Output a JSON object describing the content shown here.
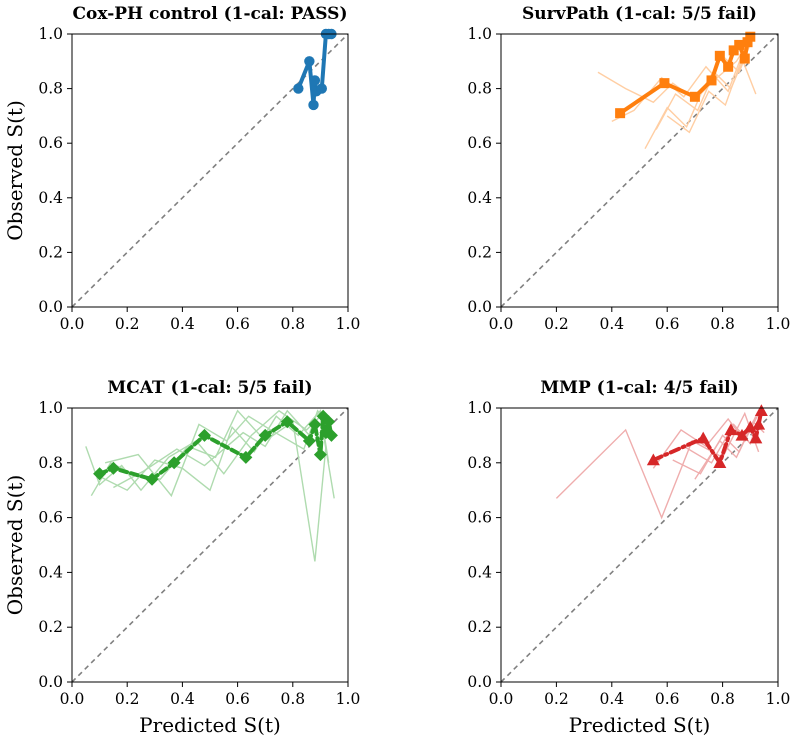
{
  "figure": {
    "xlabel": "Predicted S(t)",
    "ylabel": "Observed S(t)"
  },
  "chart_data": [
    {
      "type": "line",
      "title": "Cox-PH control (1-cal: PASS)",
      "xlim": [
        0,
        1
      ],
      "ylim": [
        0,
        1
      ],
      "xticks": [
        "0.0",
        "0.2",
        "0.4",
        "0.6",
        "0.8",
        "1.0"
      ],
      "yticks": [
        "0.0",
        "0.2",
        "0.4",
        "0.6",
        "0.8",
        "1.0"
      ],
      "ylabel": "Observed S(t)",
      "xlabel": "",
      "reference_line": "y = x",
      "color": "#1f77b4",
      "marker": "circle",
      "dash": "",
      "folds": [],
      "series": [
        {
          "x": [
            0.82,
            0.86,
            0.875,
            0.88,
            0.885,
            0.905,
            0.92,
            0.93,
            0.94
          ],
          "y": [
            0.8,
            0.9,
            0.74,
            0.83,
            0.79,
            0.8,
            1.0,
            1.0,
            1.0
          ]
        }
      ]
    },
    {
      "type": "line",
      "title": "SurvPath (1-cal: 5/5 fail)",
      "xlim": [
        0,
        1
      ],
      "ylim": [
        0,
        1
      ],
      "xticks": [
        "0.0",
        "0.2",
        "0.4",
        "0.6",
        "0.8",
        "1.0"
      ],
      "yticks": [
        "0.0",
        "0.2",
        "0.4",
        "0.6",
        "0.8",
        "1.0"
      ],
      "ylabel": "",
      "xlabel": "",
      "reference_line": "y = x",
      "color": "#ff7f0e",
      "marker": "square",
      "dash": "",
      "folds": [
        {
          "x": [
            0.35,
            0.45,
            0.55,
            0.62,
            0.7,
            0.78,
            0.85,
            0.9
          ],
          "y": [
            0.86,
            0.8,
            0.75,
            0.82,
            0.76,
            0.84,
            0.9,
            0.98
          ]
        },
        {
          "x": [
            0.4,
            0.48,
            0.58,
            0.66,
            0.74,
            0.82,
            0.88
          ],
          "y": [
            0.68,
            0.72,
            0.84,
            0.77,
            0.88,
            0.79,
            0.95
          ]
        },
        {
          "x": [
            0.52,
            0.6,
            0.67,
            0.73,
            0.8,
            0.86,
            0.91
          ],
          "y": [
            0.58,
            0.73,
            0.66,
            0.8,
            0.92,
            0.86,
            0.99
          ]
        },
        {
          "x": [
            0.56,
            0.63,
            0.71,
            0.77,
            0.83,
            0.89
          ],
          "y": [
            0.65,
            0.78,
            0.72,
            0.86,
            0.8,
            0.94
          ]
        },
        {
          "x": [
            0.6,
            0.68,
            0.75,
            0.81,
            0.87,
            0.92
          ],
          "y": [
            0.7,
            0.64,
            0.79,
            0.74,
            0.91,
            0.78
          ]
        }
      ],
      "series": [
        {
          "x": [
            0.43,
            0.59,
            0.7,
            0.76,
            0.79,
            0.82,
            0.84,
            0.86,
            0.88,
            0.89,
            0.9
          ],
          "y": [
            0.71,
            0.82,
            0.77,
            0.83,
            0.92,
            0.88,
            0.94,
            0.96,
            0.91,
            0.97,
            0.99
          ]
        }
      ]
    },
    {
      "type": "line",
      "title": "MCAT (1-cal: 5/5 fail)",
      "xlim": [
        0,
        1
      ],
      "ylim": [
        0,
        1
      ],
      "xticks": [
        "0.0",
        "0.2",
        "0.4",
        "0.6",
        "0.8",
        "1.0"
      ],
      "yticks": [
        "0.0",
        "0.2",
        "0.4",
        "0.6",
        "0.8",
        "1.0"
      ],
      "ylabel": "Observed S(t)",
      "xlabel": "Predicted S(t)",
      "reference_line": "y = x",
      "color": "#2ca02c",
      "marker": "diamond",
      "dash": "7,4",
      "folds": [
        {
          "x": [
            0.05,
            0.1,
            0.18,
            0.25,
            0.35,
            0.45,
            0.55,
            0.65,
            0.75,
            0.85,
            0.9,
            0.95
          ],
          "y": [
            0.86,
            0.72,
            0.79,
            0.7,
            0.82,
            0.88,
            0.76,
            0.9,
            0.99,
            0.92,
            0.97,
            0.67
          ]
        },
        {
          "x": [
            0.07,
            0.14,
            0.22,
            0.32,
            0.42,
            0.52,
            0.6,
            0.7,
            0.8,
            0.88,
            0.92
          ],
          "y": [
            0.68,
            0.8,
            0.76,
            0.74,
            0.86,
            0.82,
            0.99,
            0.88,
            0.95,
            0.44,
            0.86
          ]
        },
        {
          "x": [
            0.1,
            0.2,
            0.3,
            0.4,
            0.5,
            0.58,
            0.66,
            0.74,
            0.82,
            0.9,
            0.93
          ],
          "y": [
            0.75,
            0.7,
            0.81,
            0.78,
            0.7,
            0.93,
            0.84,
            0.97,
            0.9,
            0.99,
            0.8
          ]
        },
        {
          "x": [
            0.12,
            0.24,
            0.36,
            0.46,
            0.56,
            0.64,
            0.72,
            0.84,
            0.89,
            0.94
          ],
          "y": [
            0.8,
            0.83,
            0.68,
            0.94,
            0.88,
            0.97,
            0.92,
            0.85,
            0.99,
            0.93
          ]
        },
        {
          "x": [
            0.15,
            0.26,
            0.38,
            0.48,
            0.62,
            0.7,
            0.78,
            0.86,
            0.91
          ],
          "y": [
            0.71,
            0.77,
            0.85,
            0.79,
            0.91,
            0.86,
            0.99,
            0.9,
            0.95
          ]
        }
      ],
      "series": [
        {
          "x": [
            0.1,
            0.15,
            0.29,
            0.37,
            0.48,
            0.63,
            0.7,
            0.78,
            0.86,
            0.88,
            0.9,
            0.91,
            0.92,
            0.93,
            0.94
          ],
          "y": [
            0.76,
            0.78,
            0.74,
            0.8,
            0.9,
            0.82,
            0.9,
            0.95,
            0.88,
            0.94,
            0.83,
            0.97,
            0.91,
            0.95,
            0.9
          ]
        }
      ]
    },
    {
      "type": "line",
      "title": "MMP (1-cal: 4/5 fail)",
      "xlim": [
        0,
        1
      ],
      "ylim": [
        0,
        1
      ],
      "xticks": [
        "0.0",
        "0.2",
        "0.4",
        "0.6",
        "0.8",
        "1.0"
      ],
      "yticks": [
        "0.0",
        "0.2",
        "0.4",
        "0.6",
        "0.8",
        "1.0"
      ],
      "ylabel": "",
      "xlabel": "Predicted S(t)",
      "reference_line": "y = x",
      "color": "#d62728",
      "marker": "triangle",
      "dash": "9,4,2,4",
      "folds": [
        {
          "x": [
            0.2,
            0.45,
            0.58,
            0.69,
            0.8,
            0.88,
            0.93
          ],
          "y": [
            0.67,
            0.92,
            0.6,
            0.88,
            0.82,
            0.98,
            0.84
          ]
        },
        {
          "x": [
            0.55,
            0.65,
            0.74,
            0.82,
            0.88,
            0.94
          ],
          "y": [
            0.78,
            0.92,
            0.86,
            0.96,
            0.88,
            1.0
          ]
        },
        {
          "x": [
            0.62,
            0.72,
            0.8,
            0.86,
            0.92
          ],
          "y": [
            0.81,
            0.76,
            0.9,
            0.84,
            0.97
          ]
        },
        {
          "x": [
            0.66,
            0.76,
            0.84,
            0.9,
            0.94
          ],
          "y": [
            0.86,
            0.8,
            0.94,
            0.87,
            0.99
          ]
        },
        {
          "x": [
            0.7,
            0.79,
            0.85,
            0.91,
            0.95
          ],
          "y": [
            0.74,
            0.88,
            0.82,
            0.95,
            0.91
          ]
        }
      ],
      "series": [
        {
          "x": [
            0.55,
            0.73,
            0.79,
            0.83,
            0.87,
            0.9,
            0.92,
            0.93,
            0.94
          ],
          "y": [
            0.81,
            0.89,
            0.8,
            0.92,
            0.9,
            0.93,
            0.89,
            0.94,
            0.99
          ]
        }
      ]
    }
  ]
}
